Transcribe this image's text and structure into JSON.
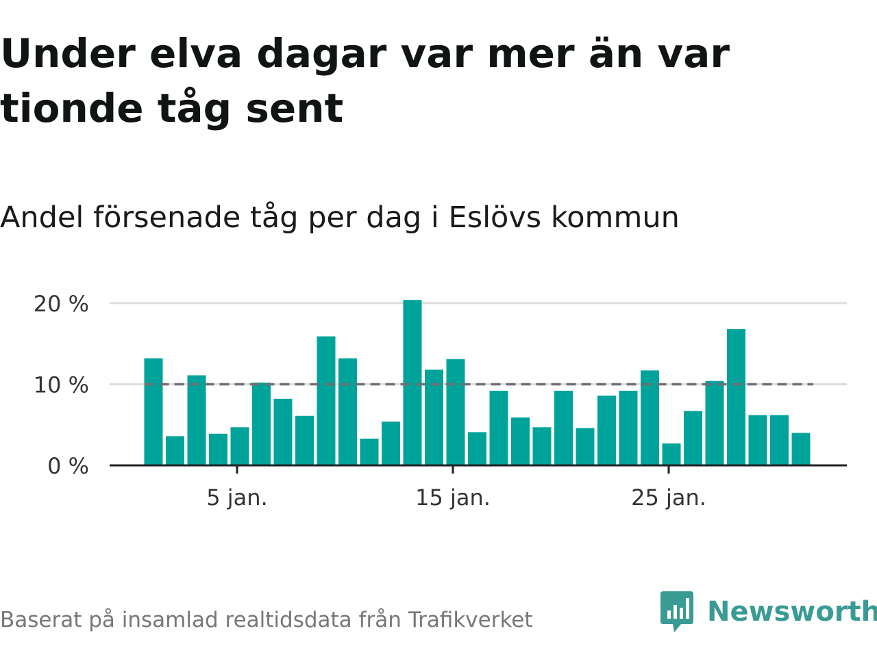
{
  "header": {
    "title": "Under elva dagar var mer än var tionde tåg sent",
    "subtitle": "Andel försenade tåg per dag i Eslövs kommun"
  },
  "footer": {
    "source": "Baserat på insamlad realtidsdata från Trafikverket",
    "brand": "Newsworthy",
    "brand_icon": "newsworthy-logo-icon"
  },
  "colors": {
    "bar": "#00A39A",
    "threshold": "#6e6e74",
    "grid": "#dddddd",
    "axis": "#222222",
    "brand": "#3a9a94"
  },
  "chart_data": {
    "type": "bar",
    "x": [
      "2024-01-01",
      "2024-01-02",
      "2024-01-03",
      "2024-01-04",
      "2024-01-05",
      "2024-01-06",
      "2024-01-07",
      "2024-01-08",
      "2024-01-09",
      "2024-01-10",
      "2024-01-11",
      "2024-01-12",
      "2024-01-13",
      "2024-01-14",
      "2024-01-15",
      "2024-01-16",
      "2024-01-17",
      "2024-01-18",
      "2024-01-19",
      "2024-01-20",
      "2024-01-21",
      "2024-01-22",
      "2024-01-23",
      "2024-01-24",
      "2024-01-25",
      "2024-01-26",
      "2024-01-27",
      "2024-01-28",
      "2024-01-29",
      "2024-01-30",
      "2024-01-31",
      "2024-02-01"
    ],
    "values": [
      13.2,
      3.6,
      11.1,
      3.9,
      4.7,
      10.2,
      8.2,
      6.1,
      15.9,
      13.2,
      3.3,
      5.4,
      20.4,
      11.8,
      13.1,
      4.1,
      9.2,
      5.9,
      4.7,
      9.2,
      4.6,
      8.6,
      9.2,
      11.7,
      2.7,
      6.7,
      10.4,
      16.8,
      6.2,
      6.2,
      4.0,
      null
    ],
    "ylim": [
      0,
      20.5
    ],
    "y_ticks": [
      0,
      10,
      20
    ],
    "y_tick_labels": [
      "0 %",
      "10 %",
      "20 %"
    ],
    "x_ticks": [
      "2024-01-05",
      "2024-01-15",
      "2024-01-25"
    ],
    "x_tick_labels": [
      "5 jan.",
      "15 jan.",
      "25 jan."
    ],
    "threshold": 10,
    "grid": true,
    "legend": "none"
  }
}
